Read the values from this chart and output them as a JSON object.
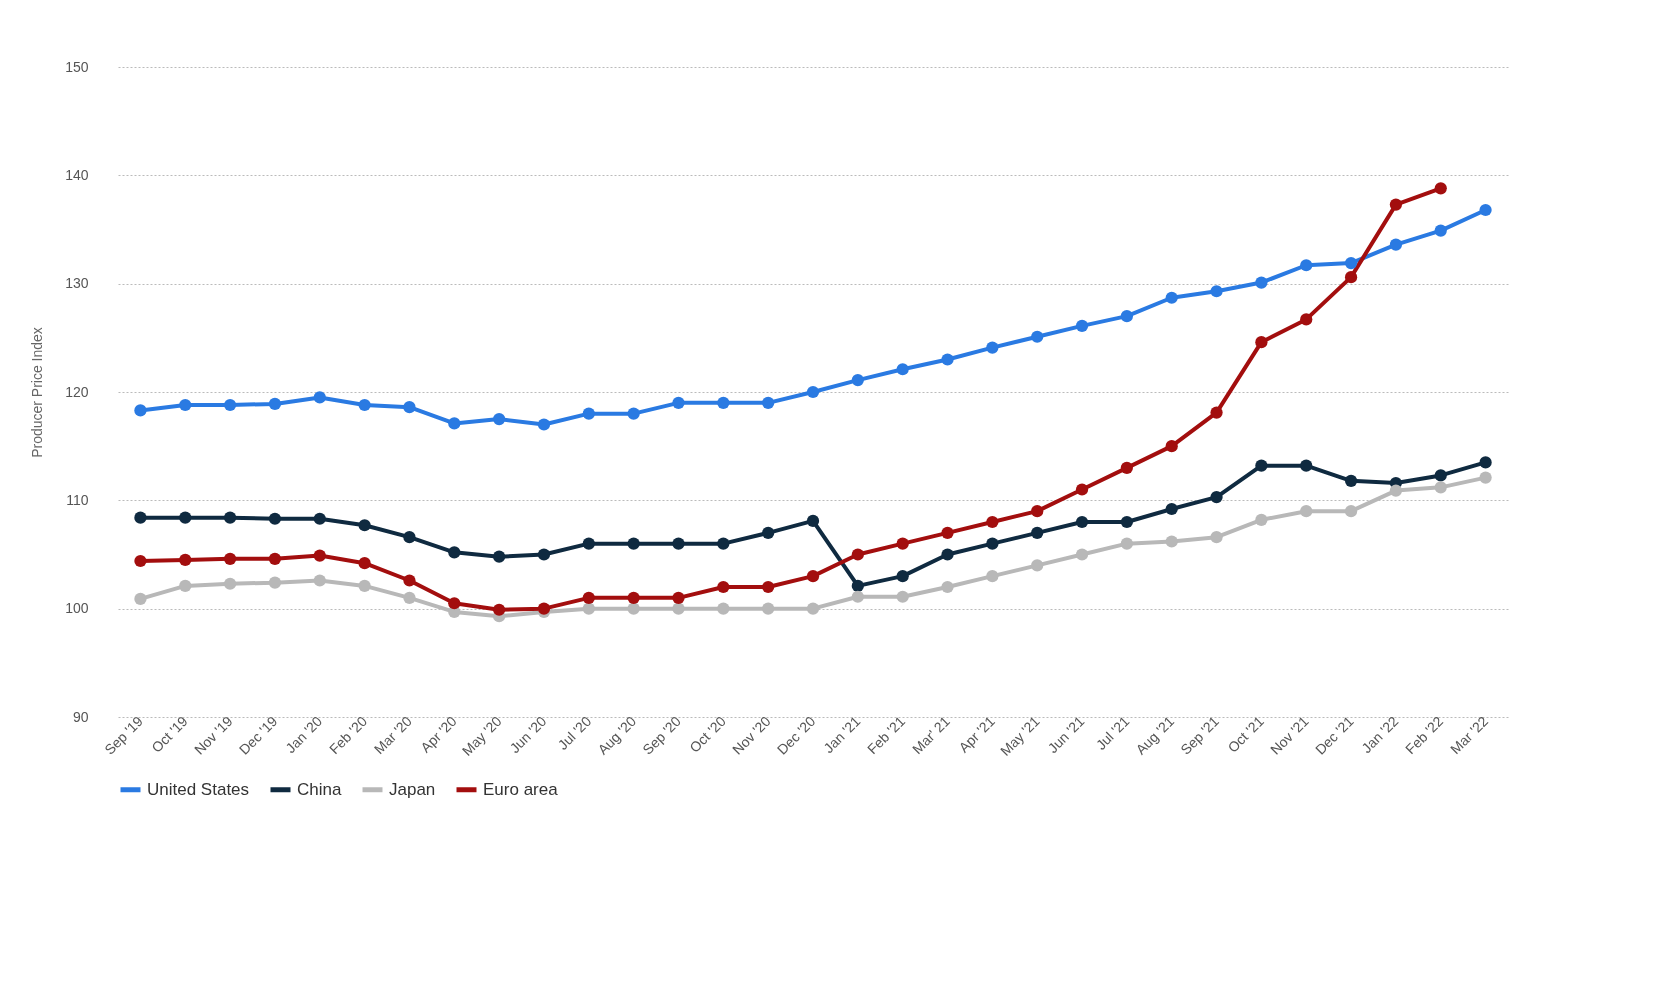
{
  "chart_data": {
    "type": "line",
    "ylabel": "Producer Price Index",
    "categories": [
      "Sep '19",
      "Oct '19",
      "Nov '19",
      "Dec '19",
      "Jan '20",
      "Feb '20",
      "Mar '20",
      "Apr '20",
      "May '20",
      "Jun '20",
      "Jul '20",
      "Aug '20",
      "Sep '20",
      "Oct '20",
      "Nov '20",
      "Dec '20",
      "Jan '21",
      "Feb '21",
      "Mar' 21",
      "Apr '21",
      "May '21",
      "Jun '21",
      "Jul '21",
      "Aug '21",
      "Sep '21",
      "Oct '21",
      "Nov '21",
      "Dec '21",
      "Jan '22",
      "Feb '22",
      "Mar '22"
    ],
    "series": [
      {
        "name": "United States",
        "color": "#2a7ae2",
        "values": [
          118.3,
          118.8,
          118.8,
          118.9,
          119.5,
          118.8,
          118.6,
          117.1,
          117.5,
          117.0,
          118.0,
          118.0,
          119.0,
          119.0,
          119.0,
          120.0,
          121.1,
          122.1,
          123.0,
          124.1,
          125.1,
          126.1,
          127.0,
          128.7,
          129.3,
          130.1,
          131.7,
          131.9,
          133.6,
          134.9,
          136.8
        ]
      },
      {
        "name": "China",
        "color": "#0f2a40",
        "values": [
          108.4,
          108.4,
          108.4,
          108.3,
          108.3,
          107.7,
          106.6,
          105.2,
          104.8,
          105.0,
          106.0,
          106.0,
          106.0,
          106.0,
          107.0,
          108.1,
          102.1,
          103.0,
          105.0,
          106.0,
          107.0,
          108.0,
          108.0,
          109.2,
          110.3,
          113.2,
          113.2,
          111.8,
          111.6,
          112.3,
          113.5
        ]
      },
      {
        "name": "Japan",
        "color": "#b8b8b8",
        "values": [
          100.9,
          102.1,
          102.3,
          102.4,
          102.6,
          102.1,
          101.0,
          99.7,
          99.3,
          99.7,
          100.0,
          100.0,
          100.0,
          100.0,
          100.0,
          100.0,
          101.1,
          101.1,
          102.0,
          103.0,
          104.0,
          105.0,
          106.0,
          106.2,
          106.6,
          108.2,
          109.0,
          109.0,
          110.9,
          111.2,
          112.1
        ]
      },
      {
        "name": "Euro area",
        "color": "#a30e0e",
        "values": [
          104.4,
          104.5,
          104.6,
          104.6,
          104.9,
          104.2,
          102.6,
          100.5,
          99.9,
          100.0,
          101.0,
          101.0,
          101.0,
          102.0,
          102.0,
          103.0,
          105.0,
          106.0,
          107.0,
          108.0,
          109.0,
          111.0,
          113.0,
          115.0,
          118.1,
          124.6,
          126.7,
          130.6,
          137.3,
          138.8,
          null
        ]
      }
    ],
    "ylim": [
      90,
      150
    ],
    "yticks": [
      90,
      100,
      110,
      120,
      130,
      140,
      150
    ],
    "grid": "y",
    "legend": "bottom",
    "marker": "circle",
    "line_style": "solid"
  }
}
